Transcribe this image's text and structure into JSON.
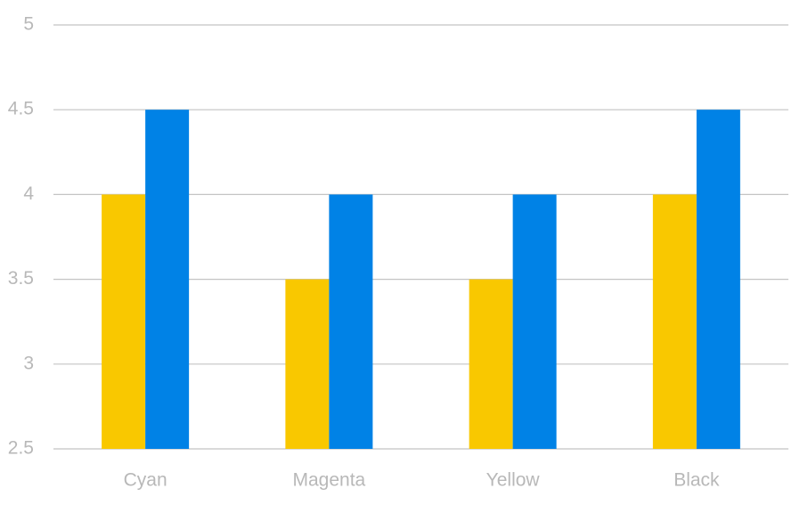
{
  "chart_data": {
    "type": "bar",
    "categories": [
      "Cyan",
      "Magenta",
      "Yellow",
      "Black"
    ],
    "series": [
      {
        "color": "#f9c800",
        "values": [
          4,
          3.5,
          3.5,
          4
        ]
      },
      {
        "color": "#0082e6",
        "values": [
          4.5,
          4,
          4,
          4.5
        ]
      }
    ],
    "ylim": [
      2.5,
      5
    ],
    "yticks": [
      2.5,
      3,
      3.5,
      4,
      4.5,
      5
    ],
    "grid": true
  }
}
